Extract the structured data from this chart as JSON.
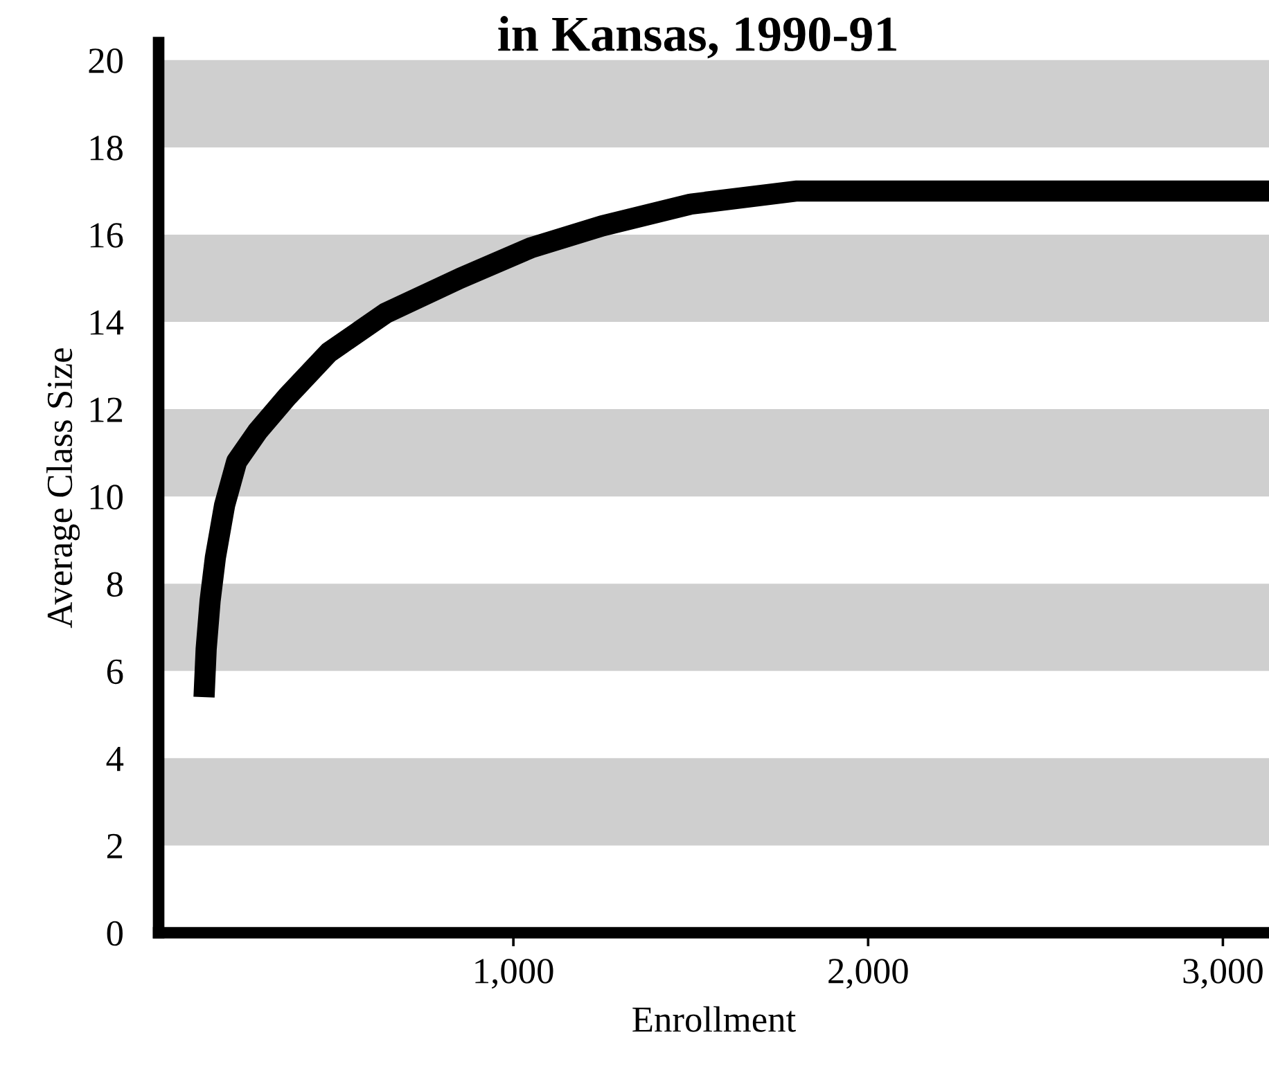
{
  "chart_data": {
    "type": "line",
    "title": "in Kansas, 1990-91",
    "xlabel": "Enrollment",
    "ylabel": "Average Class Size",
    "x": [
      128,
      134,
      145,
      160,
      186,
      220,
      280,
      364,
      480,
      640,
      850,
      1050,
      1250,
      1500,
      1800,
      2000,
      3130
    ],
    "series": [
      {
        "color": "#000000",
        "values": [
          5.4,
          6.5,
          7.6,
          8.6,
          9.8,
          10.8,
          11.5,
          12.3,
          13.3,
          14.2,
          15,
          15.7,
          16.2,
          16.7,
          17,
          17,
          17
        ]
      }
    ],
    "xlim": [
      0,
      3130
    ],
    "ylim": [
      0,
      20.4
    ],
    "xticks": [
      {
        "value": 1000,
        "label": "1,000"
      },
      {
        "value": 2000,
        "label": "2,000"
      },
      {
        "value": 3000,
        "label": "3,000"
      }
    ],
    "yticks": [
      0,
      2,
      4,
      6,
      8,
      10,
      12,
      14,
      16,
      18,
      20
    ],
    "bands": [
      {
        "axis": "y",
        "from": 2,
        "to": 4,
        "color": "#cfcfcf"
      },
      {
        "axis": "y",
        "from": 6,
        "to": 8,
        "color": "#cfcfcf"
      },
      {
        "axis": "y",
        "from": 10,
        "to": 12,
        "color": "#cfcfcf"
      },
      {
        "axis": "y",
        "from": 14,
        "to": 16,
        "color": "#cfcfcf"
      },
      {
        "axis": "y",
        "from": 18,
        "to": 20,
        "color": "#cfcfcf"
      }
    ],
    "grid": false,
    "legend": false,
    "marker": "none",
    "line_style": "solid"
  }
}
